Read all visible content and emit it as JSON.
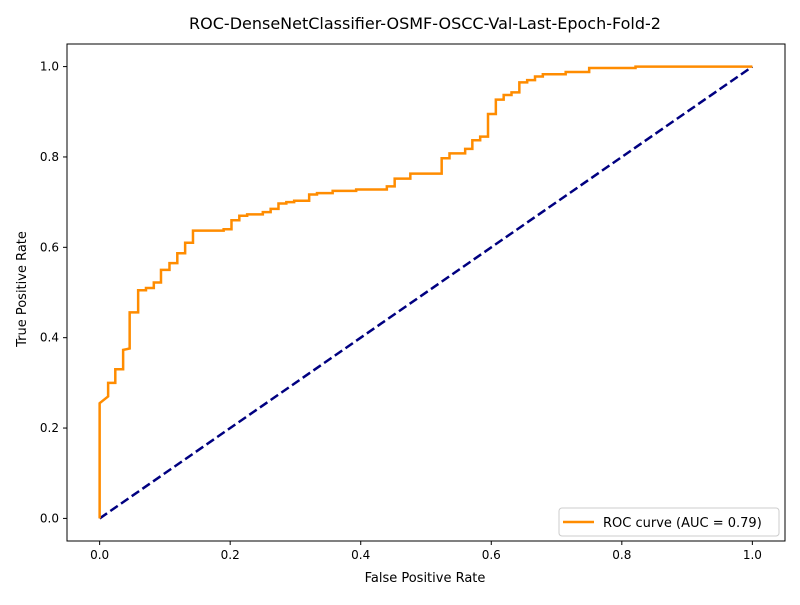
{
  "chart_data": {
    "type": "line",
    "title": "ROC-DenseNetClassifier-OSMF-OSCC-Val-Last-Epoch-Fold-2",
    "xlabel": "False Positive Rate",
    "ylabel": "True Positive Rate",
    "xlim": [
      -0.05,
      1.05
    ],
    "ylim": [
      -0.05,
      1.05
    ],
    "x_ticks": [
      0.0,
      0.2,
      0.4,
      0.6,
      0.8,
      1.0
    ],
    "y_ticks": [
      0.0,
      0.2,
      0.4,
      0.6,
      0.8,
      1.0
    ],
    "x_tick_labels": [
      "0.0",
      "0.2",
      "0.4",
      "0.6",
      "0.8",
      "1.0"
    ],
    "y_tick_labels": [
      "0.0",
      "0.2",
      "0.4",
      "0.6",
      "0.8",
      "1.0"
    ],
    "grid": false,
    "legend_position": "lower-right",
    "series": [
      {
        "name": "ROC curve (AUC = 0.79)",
        "style": "solid",
        "color": "#ff8c00",
        "x": [
          0.0,
          0.0,
          0.0,
          0.013,
          0.013,
          0.024,
          0.024,
          0.036,
          0.036,
          0.046,
          0.046,
          0.059,
          0.059,
          0.071,
          0.071,
          0.083,
          0.083,
          0.094,
          0.094,
          0.107,
          0.107,
          0.119,
          0.119,
          0.131,
          0.131,
          0.143,
          0.143,
          0.19,
          0.19,
          0.202,
          0.202,
          0.214,
          0.214,
          0.226,
          0.226,
          0.25,
          0.25,
          0.262,
          0.262,
          0.274,
          0.274,
          0.286,
          0.286,
          0.298,
          0.298,
          0.321,
          0.321,
          0.333,
          0.333,
          0.357,
          0.357,
          0.393,
          0.393,
          0.44,
          0.44,
          0.452,
          0.452,
          0.476,
          0.476,
          0.524,
          0.524,
          0.536,
          0.536,
          0.56,
          0.56,
          0.571,
          0.571,
          0.583,
          0.583,
          0.595,
          0.595,
          0.607,
          0.607,
          0.619,
          0.619,
          0.631,
          0.631,
          0.643,
          0.643,
          0.655,
          0.655,
          0.667,
          0.667,
          0.679,
          0.679,
          0.714,
          0.714,
          0.75,
          0.75,
          0.821,
          0.821,
          1.0
        ],
        "y": [
          0.0,
          0.255,
          0.255,
          0.27,
          0.3,
          0.3,
          0.33,
          0.33,
          0.373,
          0.376,
          0.456,
          0.456,
          0.505,
          0.505,
          0.51,
          0.51,
          0.522,
          0.522,
          0.55,
          0.55,
          0.565,
          0.565,
          0.587,
          0.587,
          0.61,
          0.61,
          0.637,
          0.637,
          0.64,
          0.64,
          0.66,
          0.66,
          0.67,
          0.67,
          0.673,
          0.673,
          0.678,
          0.678,
          0.685,
          0.685,
          0.697,
          0.697,
          0.7,
          0.7,
          0.703,
          0.703,
          0.717,
          0.717,
          0.72,
          0.72,
          0.725,
          0.725,
          0.728,
          0.728,
          0.735,
          0.735,
          0.752,
          0.752,
          0.763,
          0.763,
          0.797,
          0.797,
          0.808,
          0.808,
          0.818,
          0.818,
          0.837,
          0.837,
          0.845,
          0.845,
          0.895,
          0.895,
          0.927,
          0.927,
          0.937,
          0.937,
          0.943,
          0.943,
          0.965,
          0.965,
          0.97,
          0.97,
          0.978,
          0.978,
          0.983,
          0.983,
          0.988,
          0.988,
          0.997,
          0.997,
          1.0,
          1.0
        ]
      },
      {
        "name": "",
        "style": "dashed",
        "color": "#000080",
        "x": [
          0.0,
          1.0
        ],
        "y": [
          0.0,
          1.0
        ]
      }
    ]
  }
}
